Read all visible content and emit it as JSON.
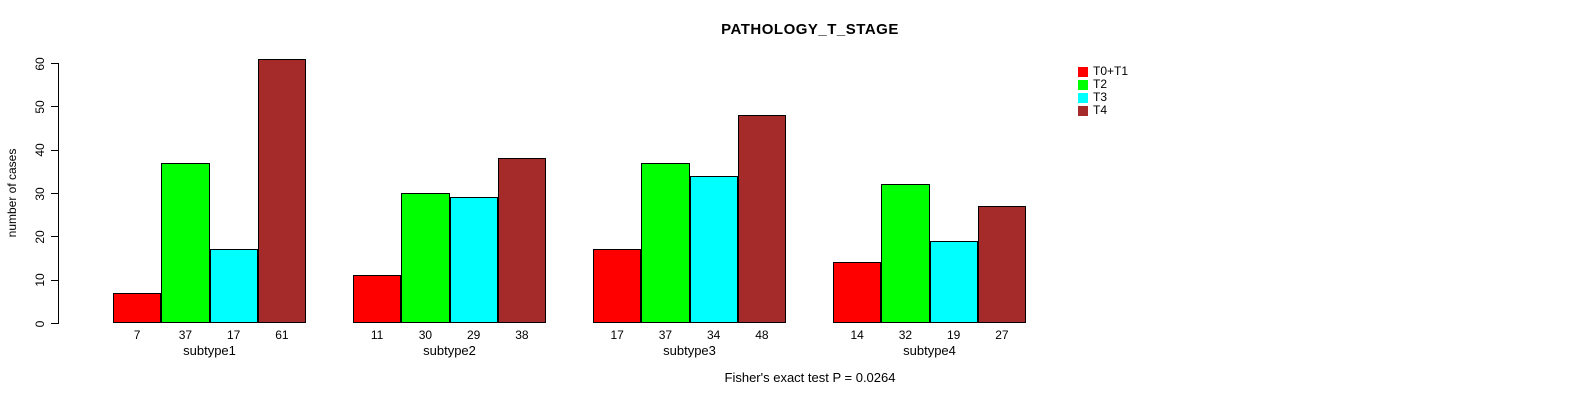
{
  "chart_data": {
    "type": "bar",
    "title": "PATHOLOGY_T_STAGE",
    "xlabel": "",
    "ylabel": "number of cases",
    "ylim": [
      0,
      60
    ],
    "yticks": [
      0,
      10,
      20,
      30,
      40,
      50,
      60
    ],
    "grid": false,
    "legend_position": "top-right",
    "categories": [
      "subtype1",
      "subtype2",
      "subtype3",
      "subtype4"
    ],
    "series": [
      {
        "name": "T0+T1",
        "color": "#FF0000",
        "values": [
          7,
          11,
          17,
          14
        ]
      },
      {
        "name": "T2",
        "color": "#00FF00",
        "values": [
          37,
          30,
          37,
          32
        ]
      },
      {
        "name": "T3",
        "color": "#00FFFF",
        "values": [
          17,
          29,
          34,
          19
        ]
      },
      {
        "name": "T4",
        "color": "#A52A2A",
        "values": [
          61,
          38,
          48,
          27
        ]
      }
    ],
    "bar_value_labels": {
      "subtype1": [
        7,
        37,
        17,
        61
      ],
      "subtype2": [
        11,
        30,
        29,
        38
      ],
      "subtype3": [
        17,
        37,
        34,
        48
      ],
      "subtype4": [
        14,
        32,
        19,
        27
      ]
    },
    "annotation": "Fisher's exact test P = 0.0264",
    "axis_color": "#000000",
    "bar_border_color": "#000000"
  }
}
